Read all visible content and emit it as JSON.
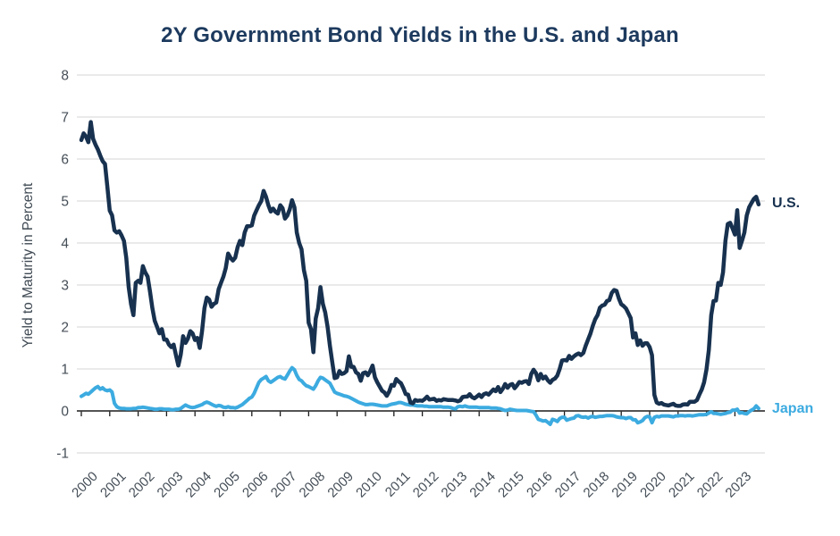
{
  "chart_data": {
    "type": "line",
    "title": "2Y Government Bond Yields in the U.S. and Japan",
    "ylabel": "Yield to Maturity in Percent",
    "ylim": [
      -1,
      8
    ],
    "yticks": [
      8,
      7,
      6,
      5,
      4,
      3,
      2,
      1,
      0,
      -1
    ],
    "xticks": [
      2000,
      2001,
      2002,
      2003,
      2004,
      2005,
      2006,
      2007,
      2008,
      2009,
      2010,
      2011,
      2012,
      2013,
      2014,
      2015,
      2016,
      2017,
      2018,
      2019,
      2020,
      2021,
      2022,
      2023
    ],
    "grid": "horizontal-light",
    "zero_axis": true,
    "legend_position": "end-of-line-labels",
    "x_unit": "decimal_year_monthly",
    "x0": 2000.0,
    "dx": 0.0833333,
    "colors": {
      "us": "#17314F",
      "japan": "#3CABE0",
      "title": "#1D3A5E",
      "axis_text": "#454E57",
      "grid": "#E3E3E3",
      "zero_line": "#1B1B1B"
    },
    "series": [
      {
        "name": "U.S.",
        "color": "#17314F",
        "values": [
          6.45,
          6.61,
          6.53,
          6.4,
          6.88,
          6.48,
          6.34,
          6.23,
          6.08,
          5.95,
          5.88,
          5.35,
          4.77,
          4.66,
          4.3,
          4.25,
          4.28,
          4.18,
          4.05,
          3.65,
          2.95,
          2.55,
          2.28,
          3.05,
          3.1,
          3.05,
          3.45,
          3.3,
          3.2,
          2.85,
          2.45,
          2.15,
          2.0,
          1.85,
          1.95,
          1.7,
          1.7,
          1.58,
          1.52,
          1.58,
          1.32,
          1.08,
          1.35,
          1.78,
          1.62,
          1.72,
          1.9,
          1.85,
          1.69,
          1.74,
          1.5,
          1.9,
          2.45,
          2.7,
          2.65,
          2.48,
          2.55,
          2.58,
          2.9,
          3.05,
          3.2,
          3.4,
          3.75,
          3.65,
          3.58,
          3.65,
          3.9,
          4.05,
          3.95,
          4.25,
          4.4,
          4.4,
          4.42,
          4.65,
          4.78,
          4.9,
          5.0,
          5.24,
          5.1,
          4.9,
          4.75,
          4.82,
          4.74,
          4.7,
          4.9,
          4.83,
          4.58,
          4.65,
          4.8,
          5.02,
          4.85,
          4.25,
          4.0,
          3.85,
          3.35,
          3.1,
          2.1,
          1.95,
          1.4,
          2.2,
          2.45,
          2.95,
          2.55,
          2.35,
          2.0,
          1.55,
          1.15,
          0.78,
          0.8,
          0.95,
          0.88,
          0.9,
          0.95,
          1.3,
          1.05,
          1.05,
          0.92,
          0.88,
          0.72,
          0.9,
          0.92,
          0.85,
          0.95,
          1.08,
          0.8,
          0.68,
          0.58,
          0.48,
          0.44,
          0.36,
          0.46,
          0.62,
          0.6,
          0.76,
          0.7,
          0.66,
          0.54,
          0.4,
          0.39,
          0.2,
          0.18,
          0.26,
          0.24,
          0.25,
          0.24,
          0.28,
          0.34,
          0.27,
          0.28,
          0.29,
          0.24,
          0.26,
          0.25,
          0.28,
          0.27,
          0.26,
          0.26,
          0.26,
          0.25,
          0.23,
          0.25,
          0.33,
          0.34,
          0.34,
          0.4,
          0.33,
          0.3,
          0.34,
          0.39,
          0.33,
          0.4,
          0.42,
          0.39,
          0.45,
          0.51,
          0.47,
          0.57,
          0.45,
          0.53,
          0.64,
          0.55,
          0.62,
          0.64,
          0.54,
          0.61,
          0.69,
          0.67,
          0.7,
          0.71,
          0.64,
          0.88,
          0.98,
          0.9,
          0.73,
          0.88,
          0.77,
          0.82,
          0.73,
          0.67,
          0.74,
          0.77,
          0.84,
          1.0,
          1.2,
          1.21,
          1.2,
          1.31,
          1.24,
          1.3,
          1.34,
          1.37,
          1.33,
          1.38,
          1.55,
          1.7,
          1.84,
          2.03,
          2.18,
          2.28,
          2.46,
          2.51,
          2.53,
          2.62,
          2.64,
          2.81,
          2.88,
          2.86,
          2.68,
          2.54,
          2.5,
          2.44,
          2.33,
          2.21,
          1.75,
          1.85,
          1.57,
          1.68,
          1.55,
          1.61,
          1.61,
          1.52,
          1.33,
          0.38,
          0.2,
          0.17,
          0.19,
          0.15,
          0.14,
          0.13,
          0.15,
          0.17,
          0.13,
          0.12,
          0.12,
          0.15,
          0.16,
          0.15,
          0.22,
          0.22,
          0.22,
          0.26,
          0.39,
          0.51,
          0.68,
          0.99,
          1.45,
          2.28,
          2.62,
          2.63,
          3.05,
          3.0,
          3.3,
          4.05,
          4.45,
          4.48,
          4.35,
          4.2,
          4.78,
          3.88,
          4.05,
          4.25,
          4.65,
          4.85,
          4.95,
          5.05,
          5.1,
          4.92
        ]
      },
      {
        "name": "Japan",
        "color": "#3CABE0",
        "values": [
          0.35,
          0.38,
          0.42,
          0.4,
          0.45,
          0.5,
          0.55,
          0.58,
          0.52,
          0.55,
          0.5,
          0.48,
          0.5,
          0.45,
          0.18,
          0.1,
          0.07,
          0.06,
          0.06,
          0.05,
          0.05,
          0.05,
          0.06,
          0.06,
          0.08,
          0.08,
          0.09,
          0.08,
          0.07,
          0.06,
          0.05,
          0.04,
          0.04,
          0.05,
          0.05,
          0.04,
          0.04,
          0.04,
          0.03,
          0.03,
          0.04,
          0.04,
          0.06,
          0.1,
          0.14,
          0.11,
          0.09,
          0.08,
          0.09,
          0.11,
          0.13,
          0.15,
          0.19,
          0.21,
          0.19,
          0.16,
          0.13,
          0.11,
          0.13,
          0.12,
          0.09,
          0.08,
          0.1,
          0.08,
          0.08,
          0.07,
          0.09,
          0.12,
          0.15,
          0.2,
          0.25,
          0.3,
          0.33,
          0.42,
          0.55,
          0.68,
          0.75,
          0.78,
          0.82,
          0.72,
          0.68,
          0.72,
          0.76,
          0.8,
          0.82,
          0.78,
          0.76,
          0.85,
          0.95,
          1.03,
          0.98,
          0.85,
          0.75,
          0.72,
          0.65,
          0.6,
          0.58,
          0.55,
          0.52,
          0.6,
          0.72,
          0.8,
          0.78,
          0.74,
          0.7,
          0.66,
          0.55,
          0.45,
          0.42,
          0.4,
          0.38,
          0.36,
          0.35,
          0.33,
          0.3,
          0.27,
          0.24,
          0.21,
          0.19,
          0.17,
          0.15,
          0.15,
          0.16,
          0.16,
          0.15,
          0.14,
          0.13,
          0.12,
          0.12,
          0.12,
          0.14,
          0.16,
          0.17,
          0.18,
          0.2,
          0.2,
          0.18,
          0.16,
          0.15,
          0.14,
          0.14,
          0.13,
          0.12,
          0.12,
          0.12,
          0.11,
          0.11,
          0.1,
          0.1,
          0.1,
          0.1,
          0.1,
          0.1,
          0.09,
          0.09,
          0.09,
          0.08,
          0.06,
          0.05,
          0.1,
          0.11,
          0.1,
          0.12,
          0.1,
          0.09,
          0.09,
          0.09,
          0.09,
          0.08,
          0.08,
          0.08,
          0.08,
          0.08,
          0.07,
          0.07,
          0.07,
          0.06,
          0.05,
          0.03,
          0.01,
          0.02,
          0.04,
          0.03,
          0.02,
          0.01,
          0.01,
          0.01,
          0.01,
          0.01,
          0.0,
          -0.01,
          -0.02,
          -0.1,
          -0.2,
          -0.22,
          -0.24,
          -0.23,
          -0.27,
          -0.32,
          -0.2,
          -0.22,
          -0.25,
          -0.18,
          -0.15,
          -0.15,
          -0.22,
          -0.2,
          -0.18,
          -0.17,
          -0.12,
          -0.11,
          -0.14,
          -0.15,
          -0.14,
          -0.17,
          -0.14,
          -0.13,
          -0.15,
          -0.14,
          -0.13,
          -0.13,
          -0.12,
          -0.11,
          -0.11,
          -0.11,
          -0.12,
          -0.14,
          -0.15,
          -0.16,
          -0.16,
          -0.18,
          -0.16,
          -0.16,
          -0.21,
          -0.21,
          -0.28,
          -0.26,
          -0.23,
          -0.16,
          -0.13,
          -0.14,
          -0.28,
          -0.15,
          -0.13,
          -0.14,
          -0.12,
          -0.12,
          -0.12,
          -0.12,
          -0.13,
          -0.14,
          -0.12,
          -0.12,
          -0.11,
          -0.11,
          -0.12,
          -0.11,
          -0.11,
          -0.12,
          -0.11,
          -0.1,
          -0.09,
          -0.09,
          -0.09,
          -0.08,
          -0.05,
          -0.02,
          -0.06,
          -0.06,
          -0.07,
          -0.08,
          -0.07,
          -0.06,
          -0.04,
          -0.03,
          0.02,
          0.02,
          0.04,
          -0.05,
          -0.04,
          -0.06,
          -0.07,
          -0.02,
          0.02,
          0.05,
          0.12,
          0.06
        ]
      }
    ]
  }
}
